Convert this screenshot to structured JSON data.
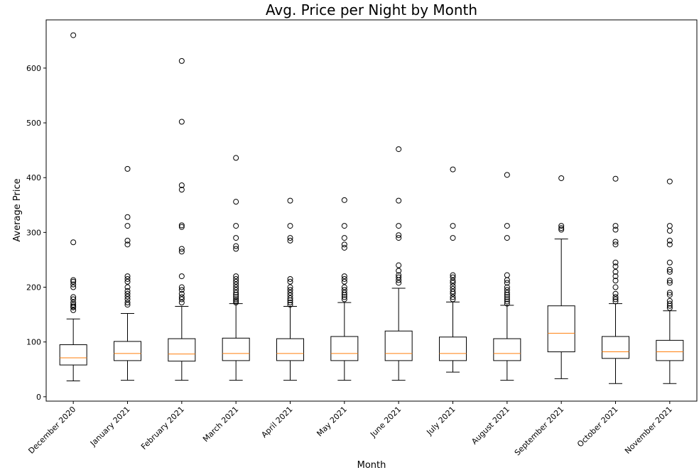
{
  "chart_data": {
    "type": "box",
    "title": "Avg. Price per Night by Month",
    "xlabel": "Month",
    "ylabel": "Average Price",
    "ylim": [
      -8,
      688
    ],
    "yticks": [
      0,
      100,
      200,
      300,
      400,
      500,
      600
    ],
    "grid": false,
    "categories": [
      "December 2020",
      "January 2021",
      "February 2021",
      "March 2021",
      "April 2021",
      "May 2021",
      "June 2021",
      "July 2021",
      "August 2021",
      "September 2021",
      "October 2021",
      "November 2021"
    ],
    "boxes": [
      {
        "whisker_low": 29,
        "q1": 58,
        "median": 71,
        "q3": 95,
        "whisker_high": 142,
        "outliers": [
          158,
          163,
          165,
          168,
          172,
          178,
          182,
          200,
          205,
          210,
          213,
          282,
          660
        ]
      },
      {
        "whisker_low": 30,
        "q1": 66,
        "median": 79,
        "q3": 101,
        "whisker_high": 152,
        "outliers": [
          168,
          172,
          178,
          183,
          188,
          193,
          200,
          210,
          215,
          220,
          278,
          285,
          312,
          328,
          416
        ]
      },
      {
        "whisker_low": 30,
        "q1": 65,
        "median": 78,
        "q3": 106,
        "whisker_high": 165,
        "outliers": [
          172,
          178,
          182,
          188,
          195,
          200,
          220,
          265,
          270,
          310,
          313,
          378,
          386,
          502,
          613
        ]
      },
      {
        "whisker_low": 30,
        "q1": 66,
        "median": 79,
        "q3": 107,
        "whisker_high": 170,
        "outliers": [
          172,
          175,
          178,
          182,
          186,
          190,
          195,
          200,
          205,
          210,
          215,
          220,
          270,
          275,
          290,
          312,
          356,
          436
        ]
      },
      {
        "whisker_low": 30,
        "q1": 66,
        "median": 79,
        "q3": 106,
        "whisker_high": 165,
        "outliers": [
          168,
          172,
          176,
          180,
          185,
          190,
          195,
          200,
          210,
          215,
          285,
          290,
          312,
          358
        ]
      },
      {
        "whisker_low": 30,
        "q1": 66,
        "median": 79,
        "q3": 110,
        "whisker_high": 172,
        "outliers": [
          178,
          182,
          186,
          190,
          195,
          200,
          210,
          215,
          220,
          272,
          278,
          290,
          312,
          359
        ]
      },
      {
        "whisker_low": 30,
        "q1": 66,
        "median": 79,
        "q3": 120,
        "whisker_high": 198,
        "outliers": [
          208,
          213,
          218,
          222,
          230,
          240,
          290,
          295,
          312,
          358,
          452
        ]
      },
      {
        "whisker_low": 45,
        "q1": 66,
        "median": 79,
        "q3": 109,
        "whisker_high": 173,
        "outliers": [
          178,
          182,
          188,
          192,
          197,
          202,
          208,
          212,
          218,
          222,
          290,
          312,
          415
        ]
      },
      {
        "whisker_low": 30,
        "q1": 66,
        "median": 79,
        "q3": 106,
        "whisker_high": 167,
        "outliers": [
          170,
          174,
          178,
          182,
          186,
          190,
          195,
          200,
          208,
          213,
          222,
          290,
          312,
          405
        ]
      },
      {
        "whisker_low": 33,
        "q1": 82,
        "median": 116,
        "q3": 166,
        "whisker_high": 288,
        "outliers": [
          305,
          308,
          312,
          399
        ]
      },
      {
        "whisker_low": 24,
        "q1": 70,
        "median": 82,
        "q3": 110,
        "whisker_high": 170,
        "outliers": [
          174,
          178,
          182,
          188,
          200,
          212,
          220,
          228,
          238,
          245,
          278,
          283,
          305,
          312,
          398
        ]
      },
      {
        "whisker_low": 24,
        "q1": 66,
        "median": 82,
        "q3": 103,
        "whisker_high": 157,
        "outliers": [
          162,
          166,
          170,
          175,
          186,
          190,
          208,
          212,
          228,
          232,
          245,
          278,
          285,
          303,
          312,
          393
        ]
      }
    ]
  }
}
